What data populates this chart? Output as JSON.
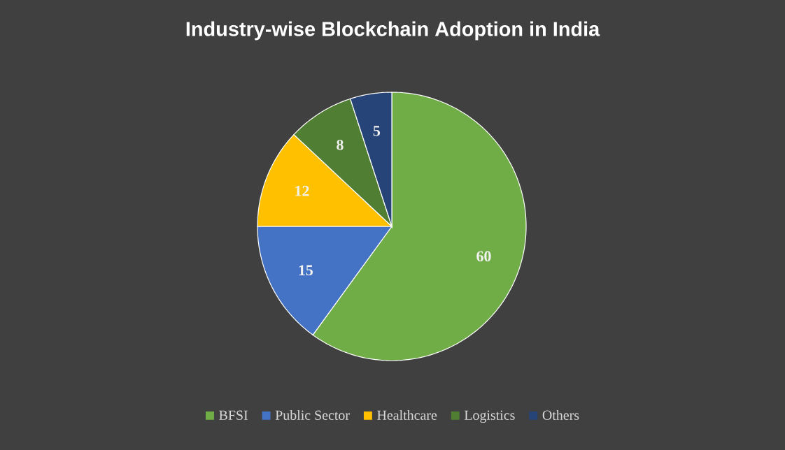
{
  "chart_data": {
    "type": "pie",
    "title": "Industry-wise Blockchain Adoption in India",
    "categories": [
      "BFSI",
      "Public Sector",
      "Healthcare",
      "Logistics",
      "Others"
    ],
    "values": [
      60,
      15,
      12,
      8,
      5
    ],
    "colors": [
      "#70ad47",
      "#4472c4",
      "#ffc000",
      "#507e32",
      "#264478"
    ],
    "data_labels": true,
    "legend": "bottom"
  }
}
